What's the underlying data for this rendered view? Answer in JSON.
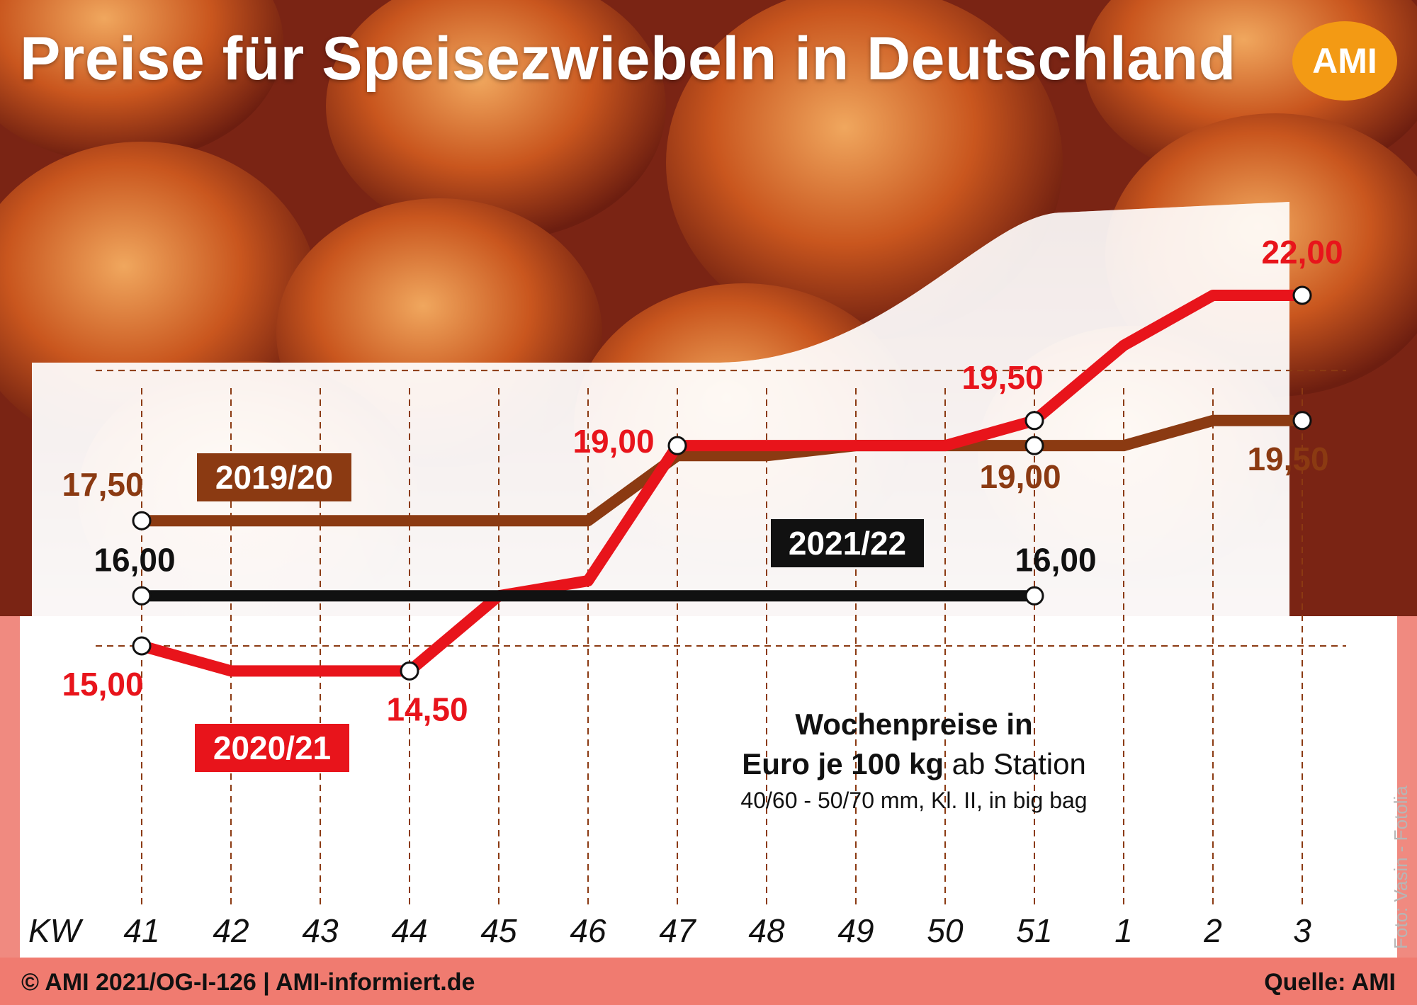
{
  "title": "Preise für Speisezwiebeln in Deutschland",
  "logo_text": "AMI",
  "footer": {
    "left": "© AMI 2021/OG-I-126 | AMI-informiert.de",
    "right": "Quelle: AMI"
  },
  "photo_credit": "Foto: Vasin - Fotolia",
  "unit": {
    "bold": "Euro je 100 kg",
    "rest": " ab Station",
    "heading": "Wochenpreise in",
    "detail": "40/60 - 50/70 mm, Kl. II, in big bag"
  },
  "chart_data": {
    "type": "line",
    "x_axis_label": "KW",
    "categories": [
      "41",
      "42",
      "43",
      "44",
      "45",
      "46",
      "47",
      "48",
      "49",
      "50",
      "51",
      "1",
      "2",
      "3"
    ],
    "ylim": [
      13.5,
      23.0
    ],
    "grid": {
      "horizontal": [
        15.0,
        20.5
      ],
      "vertical": true
    },
    "series": [
      {
        "name": "2019/20",
        "color": "#8b3a12",
        "values": [
          17.5,
          17.5,
          17.5,
          17.5,
          17.5,
          17.5,
          18.8,
          18.8,
          19.0,
          19.0,
          19.0,
          19.0,
          19.5,
          19.5
        ],
        "labels": [
          {
            "index": 0,
            "text": "17,50",
            "marker": true
          },
          {
            "index": 10,
            "text": "19,00",
            "marker": true
          },
          {
            "index": 13,
            "text": "19,50",
            "marker": true
          }
        ]
      },
      {
        "name": "2020/21",
        "color": "#e8141b",
        "values": [
          15.0,
          14.5,
          14.5,
          14.5,
          16.0,
          16.3,
          19.0,
          19.0,
          19.0,
          19.0,
          19.5,
          21.0,
          22.0,
          22.0
        ],
        "labels": [
          {
            "index": 0,
            "text": "15,00",
            "marker": true
          },
          {
            "index": 3,
            "text": "14,50",
            "marker": true
          },
          {
            "index": 6,
            "text": "19,00",
            "marker": true
          },
          {
            "index": 10,
            "text": "19,50",
            "marker": true
          },
          {
            "index": 13,
            "text": "22,00",
            "marker": true
          }
        ]
      },
      {
        "name": "2021/22",
        "color": "#111111",
        "values": [
          16.0,
          16.0,
          16.0,
          16.0,
          16.0,
          16.0,
          16.0,
          16.0,
          16.0,
          16.0,
          16.0,
          null,
          null,
          null
        ],
        "labels": [
          {
            "index": 0,
            "text": "16,00",
            "marker": true
          },
          {
            "index": 10,
            "text": "16,00",
            "marker": true
          }
        ]
      }
    ]
  }
}
